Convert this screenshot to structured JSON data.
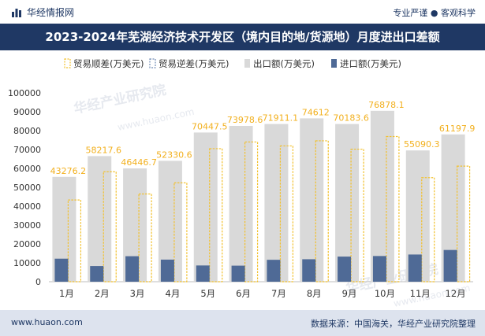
{
  "header": {
    "brand": "华经情报网",
    "tagline": "专业严谨 ● 客观科学",
    "title": "2023-2024年芜湖经济技术开发区（境内目的地/货源地）月度进出口差额"
  },
  "footer": {
    "website": "www.huaon.com",
    "source": "数据来源：中国海关，华经产业研究院整理"
  },
  "watermarks": [
    "华经产业研究院",
    "www.huaon.com"
  ],
  "colors": {
    "export": "#d9d9d9",
    "import": "#4f6a96",
    "surplus_border": "#f2c12e",
    "title_bg": "#1f3864",
    "label": "#f2b01e"
  },
  "chart_data": {
    "type": "bar",
    "categories": [
      "1月",
      "2月",
      "3月",
      "4月",
      "5月",
      "6月",
      "7月",
      "8月",
      "9月",
      "10月",
      "11月",
      "12月"
    ],
    "series": [
      {
        "name": "贸易顺差(万美元)",
        "values": [
          43276.2,
          58217.6,
          46446.7,
          52330.6,
          70447.5,
          73978.6,
          71911.1,
          74612,
          70183.6,
          76878.1,
          55090.3,
          61197.9
        ]
      },
      {
        "name": "贸易逆差(万美元)",
        "values": [
          0,
          0,
          0,
          0,
          0,
          0,
          0,
          0,
          0,
          0,
          0,
          0
        ]
      },
      {
        "name": "出口额(万美元)",
        "values": [
          55500,
          66500,
          60000,
          64000,
          79000,
          82500,
          83500,
          86500,
          83500,
          90500,
          69500,
          78000
        ]
      },
      {
        "name": "进口额(万美元)",
        "values": [
          12200,
          8300,
          13500,
          11700,
          8600,
          8500,
          11600,
          11900,
          13300,
          13600,
          14400,
          16800
        ]
      }
    ],
    "data_labels": [
      "43276.2",
      "58217.6",
      "46446.7",
      "52330.6",
      "70447.5",
      "73978.6",
      "71911.1",
      "74612",
      "70183.6",
      "76878.1",
      "55090.3",
      "61197.9"
    ],
    "yticks": [
      "0",
      "10000",
      "20000",
      "30000",
      "40000",
      "50000",
      "60000",
      "70000",
      "80000",
      "90000",
      "100000"
    ],
    "ylim": [
      0,
      100000
    ],
    "legend_position": "top"
  }
}
